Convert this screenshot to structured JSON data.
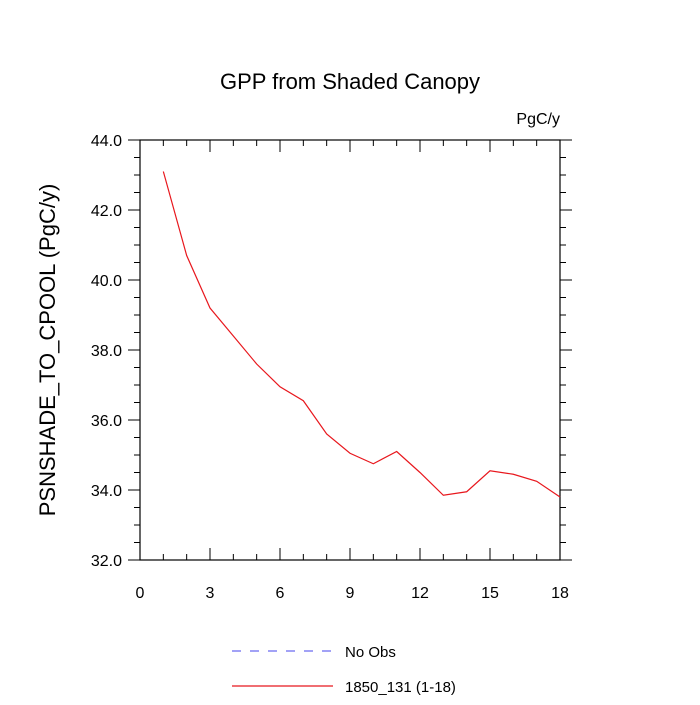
{
  "chart_data": {
    "type": "line",
    "title": "GPP from Shaded Canopy",
    "units_label": "PgC/y",
    "xlabel": "",
    "ylabel": "PSNSHADE_TO_CPOOL  (PgC/y)",
    "xlim": [
      0,
      18
    ],
    "ylim": [
      32.0,
      44.0
    ],
    "x_ticks": [
      0,
      3,
      6,
      9,
      12,
      15,
      18
    ],
    "x_tick_labels": [
      "0",
      "3",
      "6",
      "9",
      "12",
      "15",
      "18"
    ],
    "y_ticks": [
      32.0,
      34.0,
      36.0,
      38.0,
      40.0,
      42.0,
      44.0
    ],
    "y_tick_labels": [
      "32.0",
      "34.0",
      "36.0",
      "38.0",
      "40.0",
      "42.0",
      "44.0"
    ],
    "grid": false,
    "series": [
      {
        "name": "1850_131 (1-18)",
        "color": "#e8171d",
        "dash": "solid",
        "x": [
          1,
          2,
          3,
          4,
          5,
          6,
          7,
          8,
          9,
          10,
          11,
          12,
          13,
          14,
          15,
          16,
          17,
          18
        ],
        "values": [
          43.1,
          40.7,
          39.2,
          38.4,
          37.6,
          36.95,
          36.55,
          35.6,
          35.05,
          34.75,
          35.1,
          34.5,
          33.85,
          33.95,
          34.55,
          34.45,
          34.25,
          33.8
        ]
      },
      {
        "name": "No Obs",
        "color": "#6b6bf0",
        "dash": "dashed",
        "x": [],
        "values": []
      }
    ],
    "legend": {
      "placement": "bottom",
      "entries": [
        "No Obs",
        "1850_131 (1-18)"
      ]
    }
  }
}
